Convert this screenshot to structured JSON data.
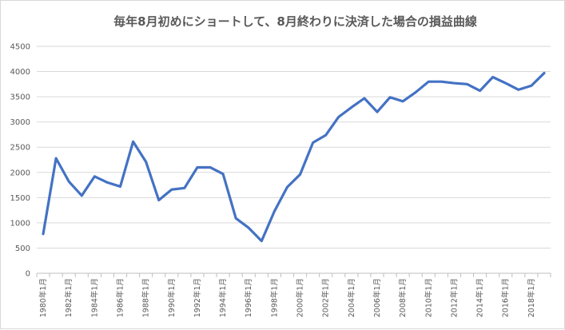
{
  "chart_data": {
    "type": "line",
    "title": "毎年8月初めにショートして、8月終わりに決済した場合の損益曲線",
    "xlabel": "",
    "ylabel": "",
    "ylim": [
      0,
      4500
    ],
    "yticks": [
      0,
      500,
      1000,
      1500,
      2000,
      2500,
      3000,
      3500,
      4000,
      4500
    ],
    "x": [
      "1980年1月",
      "1981年1月",
      "1982年1月",
      "1983年1月",
      "1984年1月",
      "1985年1月",
      "1986年1月",
      "1987年1月",
      "1988年1月",
      "1989年1月",
      "1990年1月",
      "1991年1月",
      "1992年1月",
      "1993年1月",
      "1994年1月",
      "1995年1月",
      "1996年1月",
      "1997年1月",
      "1998年1月",
      "1999年1月",
      "2000年1月",
      "2001年1月",
      "2002年1月",
      "2003年1月",
      "2004年1月",
      "2005年1月",
      "2006年1月",
      "2007年1月",
      "2008年1月",
      "2009年1月",
      "2010年1月",
      "2011年1月",
      "2012年1月",
      "2013年1月",
      "2014年1月",
      "2015年1月",
      "2016年1月",
      "2017年1月",
      "2018年1月",
      "2019年1月"
    ],
    "x_tick_labels": [
      "1980年1月",
      "1982年1月",
      "1984年1月",
      "1986年1月",
      "1988年1月",
      "1990年1月",
      "1992年1月",
      "1994年1月",
      "1996年1月",
      "1998年1月",
      "2000年1月",
      "2002年1月",
      "2004年1月",
      "2006年1月",
      "2008年1月",
      "2010年1月",
      "2012年1月",
      "2014年1月",
      "2016年1月",
      "2018年1月"
    ],
    "series": [
      {
        "name": "",
        "color": "#4472C4",
        "values": [
          780,
          2280,
          1820,
          1540,
          1920,
          1800,
          1720,
          2610,
          2210,
          1450,
          1660,
          1690,
          2100,
          2100,
          1970,
          1090,
          900,
          640,
          1230,
          1710,
          1960,
          2590,
          2740,
          3100,
          3290,
          3470,
          3200,
          3490,
          3410,
          3590,
          3800,
          3800,
          3770,
          3750,
          3620,
          3890,
          3770,
          3640,
          3720,
          3970
        ]
      }
    ],
    "grid": true,
    "legend": "none"
  }
}
